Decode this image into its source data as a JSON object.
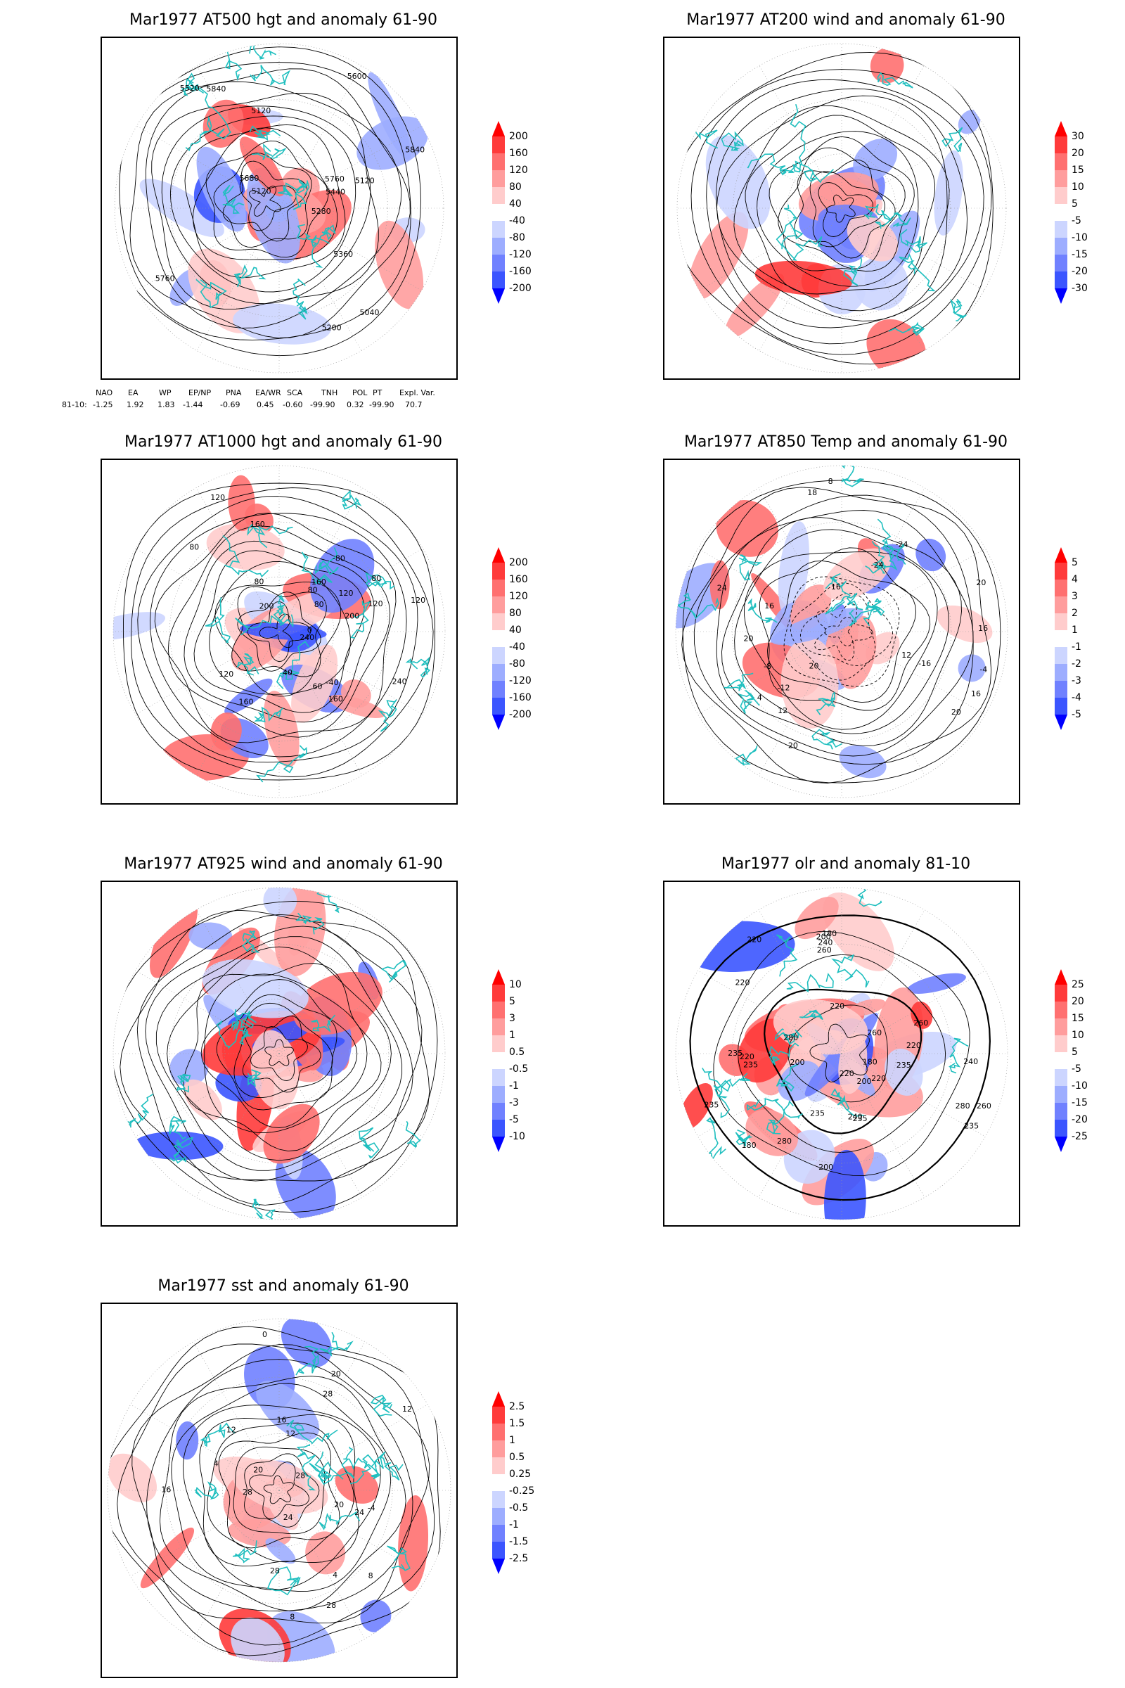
{
  "panels": [
    {
      "title": "Mar1977 AT500 hgt and anomaly 61-90",
      "contour_labels": [
        "5840",
        "5760",
        "5120",
        "5120",
        "5120",
        "5040",
        "5200",
        "5280",
        "5360",
        "5440",
        "5520",
        "5600",
        "5680",
        "5760",
        "5840"
      ],
      "colorbar": [
        "200",
        "160",
        "120",
        "80",
        "40",
        "-40",
        "-80",
        "-120",
        "-160",
        "-200"
      ]
    },
    {
      "title": "Mar1977 AT200 wind and anomaly 61-90",
      "contour_labels": [],
      "colorbar": [
        "30",
        "20",
        "15",
        "10",
        "5",
        "-5",
        "-10",
        "-15",
        "-20",
        "-30"
      ]
    },
    {
      "title": "Mar1977 AT1000 hgt and anomaly 61-90",
      "contour_labels": [
        "80",
        "80",
        "120",
        "160",
        "240",
        "200",
        "160",
        "120",
        "120",
        "40",
        "80",
        "160",
        "60",
        "0",
        "-40",
        "-80",
        "120",
        "240",
        "200",
        "160",
        "120",
        "80",
        "80"
      ],
      "colorbar": [
        "200",
        "160",
        "120",
        "80",
        "40",
        "-40",
        "-80",
        "-120",
        "-160",
        "-200"
      ]
    },
    {
      "title": "Mar1977 AT850 Temp and anomaly 61-90",
      "contour_labels": [
        "12",
        "16",
        "18",
        "16",
        "8",
        "4",
        "20",
        "16",
        "-24",
        "-24",
        "-16",
        "-12",
        "-8",
        "-4",
        "20",
        "16",
        "12",
        "20",
        "24",
        "20",
        "20"
      ],
      "colorbar": [
        "5",
        "4",
        "3",
        "2",
        "1",
        "-1",
        "-2",
        "-3",
        "-4",
        "-5"
      ]
    },
    {
      "title": "Mar1977 AT925 wind and anomaly 61-90",
      "contour_labels": [],
      "colorbar": [
        "10",
        "5",
        "3",
        "1",
        "0.5",
        "-0.5",
        "-1",
        "-3",
        "-5",
        "-10"
      ]
    },
    {
      "title": "Mar1977 olr and anomaly 81-10",
      "contour_labels": [
        "260",
        "260",
        "200",
        "220",
        "240",
        "280",
        "235",
        "235",
        "220",
        "200",
        "180",
        "180",
        "200",
        "220",
        "180",
        "200",
        "220",
        "240",
        "280",
        "235",
        "235",
        "260",
        "220",
        "220",
        "280",
        "235",
        "235",
        "240",
        "260",
        "235",
        "220"
      ],
      "colorbar": [
        "25",
        "20",
        "15",
        "10",
        "5",
        "-5",
        "-10",
        "-15",
        "-20",
        "-25"
      ]
    },
    {
      "title": "Mar1977 sst and anomaly 61-90",
      "contour_labels": [
        "28",
        "24",
        "20",
        "20",
        "16",
        "12",
        "12",
        "8",
        "4",
        "0",
        "28",
        "12",
        "8",
        "4",
        "-4",
        "20",
        "16",
        "28",
        "24",
        "28",
        "28"
      ],
      "colorbar": [
        "2.5",
        "1.5",
        "1",
        "0.5",
        "0.25",
        "-0.25",
        "-0.5",
        "-1",
        "-1.5",
        "-2.5"
      ]
    }
  ],
  "indices": {
    "headers": [
      "NAO",
      "EA",
      "WP",
      "EP/NP",
      "PNA",
      "EA/WR",
      "SCA",
      "TNH",
      "POL",
      "PT",
      "Expl. Var."
    ],
    "row_label": "81-10:",
    "values": [
      "-1.25",
      "1.92",
      "1.83",
      "-1.44",
      "-0.69",
      "0.45",
      "-0.60",
      "-99.90",
      "0.32",
      "-99.90",
      "70.7"
    ]
  },
  "colors": {
    "coast": "#1fbfbf",
    "positive": [
      "#ff0000",
      "#ff3b3b",
      "#ff7070",
      "#ff9d9d",
      "#ffcccc"
    ],
    "negative": [
      "#ccd5ff",
      "#9dadff",
      "#7081ff",
      "#3b55ff",
      "#0000ff"
    ],
    "contour": "#000000"
  }
}
